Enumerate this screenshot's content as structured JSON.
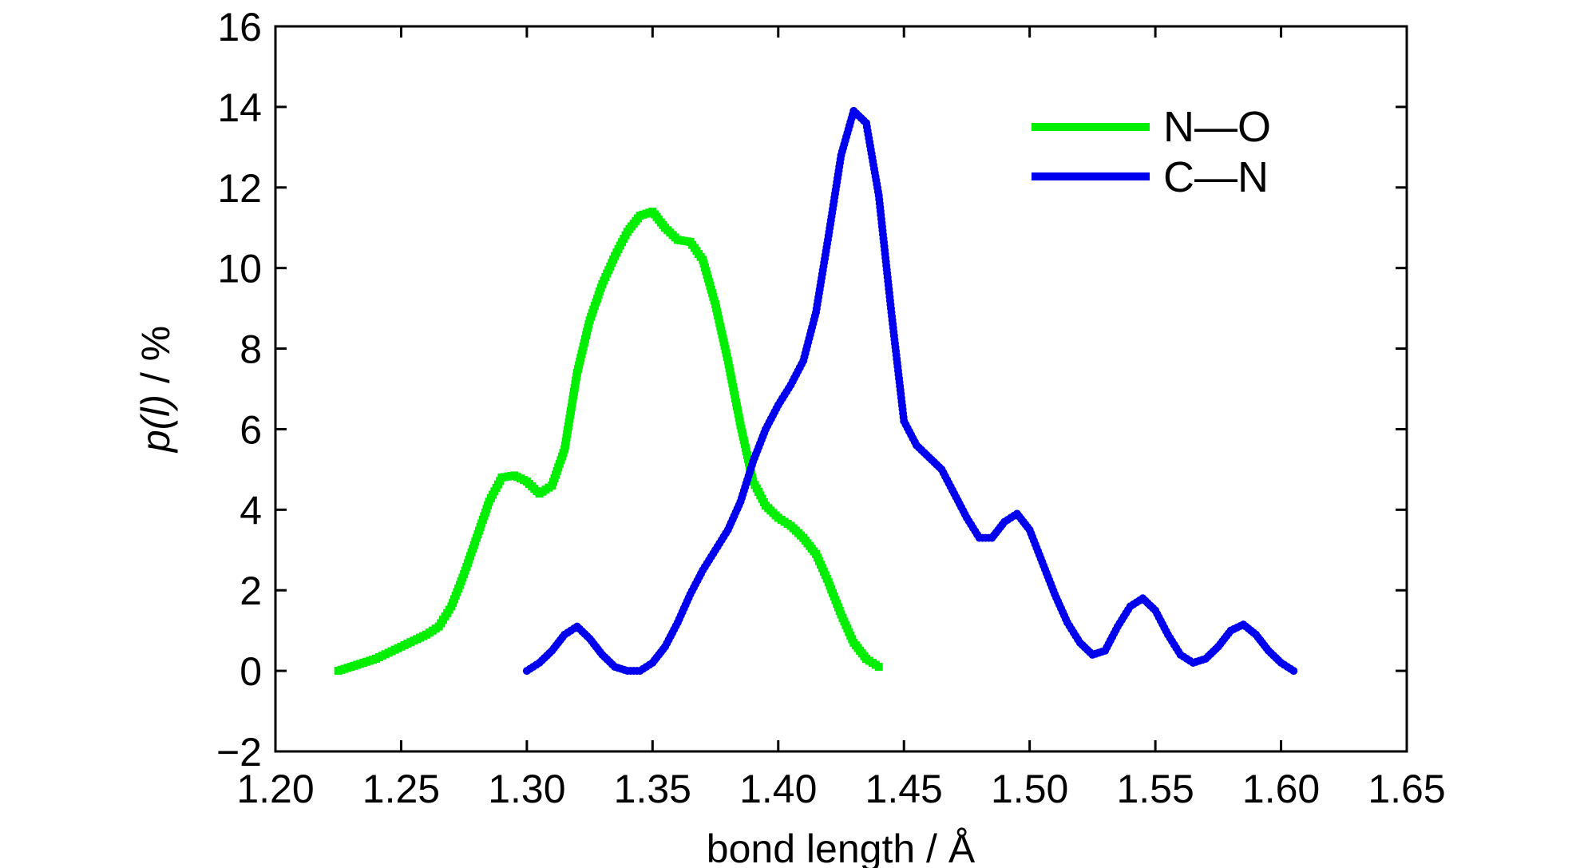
{
  "chart_data": {
    "type": "scatter",
    "xlabel": "bond length / Å",
    "ylabel_var": "p(l)",
    "ylabel_unit": " / %",
    "xlim": [
      1.2,
      1.65
    ],
    "ylim": [
      -2,
      16
    ],
    "xticks": [
      "1.20",
      "1.25",
      "1.30",
      "1.35",
      "1.40",
      "1.45",
      "1.50",
      "1.55",
      "1.60",
      "1.65"
    ],
    "yticks": [
      "16",
      "14",
      "12",
      "10",
      "8",
      "6",
      "4",
      "2",
      "0",
      "−2"
    ],
    "grid": false,
    "legend_position": "top-right",
    "series": [
      {
        "name": "N—O",
        "color": "#00ee00",
        "marker": "square",
        "x": [
          1.225,
          1.23,
          1.235,
          1.24,
          1.245,
          1.25,
          1.255,
          1.26,
          1.265,
          1.27,
          1.275,
          1.28,
          1.285,
          1.29,
          1.295,
          1.3,
          1.305,
          1.31,
          1.315,
          1.32,
          1.325,
          1.33,
          1.335,
          1.34,
          1.345,
          1.35,
          1.355,
          1.36,
          1.365,
          1.37,
          1.375,
          1.38,
          1.385,
          1.39,
          1.395,
          1.4,
          1.405,
          1.41,
          1.415,
          1.42,
          1.425,
          1.43,
          1.435,
          1.44
        ],
        "y": [
          0.0,
          0.1,
          0.2,
          0.3,
          0.45,
          0.6,
          0.75,
          0.9,
          1.1,
          1.6,
          2.4,
          3.3,
          4.2,
          4.8,
          4.85,
          4.7,
          4.4,
          4.6,
          5.5,
          7.4,
          8.7,
          9.6,
          10.3,
          10.9,
          11.3,
          11.4,
          11.0,
          10.7,
          10.65,
          10.2,
          9.1,
          7.7,
          6.1,
          4.7,
          4.1,
          3.8,
          3.6,
          3.3,
          2.9,
          2.2,
          1.4,
          0.7,
          0.3,
          0.1
        ]
      },
      {
        "name": "C—N",
        "color": "#0000ee",
        "marker": "circle",
        "x": [
          1.3,
          1.305,
          1.31,
          1.315,
          1.32,
          1.325,
          1.33,
          1.335,
          1.34,
          1.345,
          1.35,
          1.355,
          1.36,
          1.365,
          1.37,
          1.375,
          1.38,
          1.385,
          1.39,
          1.395,
          1.4,
          1.405,
          1.41,
          1.415,
          1.42,
          1.425,
          1.43,
          1.435,
          1.44,
          1.445,
          1.45,
          1.455,
          1.46,
          1.465,
          1.47,
          1.475,
          1.48,
          1.485,
          1.49,
          1.495,
          1.5,
          1.505,
          1.51,
          1.515,
          1.52,
          1.525,
          1.53,
          1.535,
          1.54,
          1.545,
          1.55,
          1.555,
          1.56,
          1.565,
          1.57,
          1.575,
          1.58,
          1.585,
          1.59,
          1.595,
          1.6,
          1.605
        ],
        "y": [
          0.0,
          0.2,
          0.5,
          0.9,
          1.1,
          0.8,
          0.4,
          0.1,
          0.0,
          0.0,
          0.2,
          0.6,
          1.2,
          1.9,
          2.5,
          3.0,
          3.5,
          4.2,
          5.2,
          6.0,
          6.6,
          7.1,
          7.7,
          8.9,
          10.8,
          12.8,
          13.9,
          13.6,
          11.8,
          8.9,
          6.2,
          5.6,
          5.3,
          5.0,
          4.4,
          3.8,
          3.3,
          3.3,
          3.7,
          3.9,
          3.5,
          2.7,
          1.9,
          1.2,
          0.7,
          0.4,
          0.5,
          1.1,
          1.6,
          1.8,
          1.5,
          0.9,
          0.4,
          0.2,
          0.3,
          0.6,
          1.0,
          1.15,
          0.9,
          0.5,
          0.2,
          0.0
        ]
      }
    ]
  }
}
